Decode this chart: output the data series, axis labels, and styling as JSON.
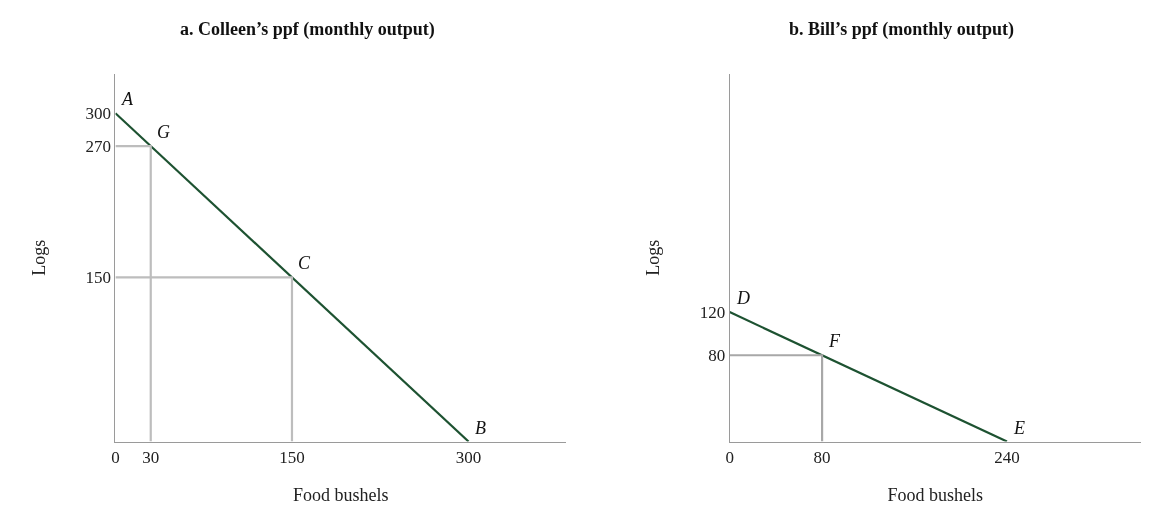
{
  "chart_data": [
    {
      "type": "line",
      "title": "a. Colleen’s ppf (monthly output)",
      "xlabel": "Food bushels",
      "ylabel": "Logs",
      "xlim": [
        0,
        383
      ],
      "ylim": [
        0,
        336
      ],
      "xticks": [
        0,
        30,
        150,
        300
      ],
      "yticks": [
        150,
        270,
        300
      ],
      "marker": "none",
      "series": [
        {
          "color": "#1d5231",
          "x": [
            0,
            300
          ],
          "values": [
            300,
            0
          ]
        },
        {
          "color": "#bdbdbd",
          "x": [
            0,
            30,
            30
          ],
          "values": [
            270,
            270,
            0
          ]
        },
        {
          "color": "#bdbdbd",
          "x": [
            0,
            150,
            150
          ],
          "values": [
            150,
            150,
            0
          ]
        }
      ],
      "annotations": [
        {
          "text": "A",
          "x": 0,
          "y": 300
        },
        {
          "text": "G",
          "x": 30,
          "y": 270
        },
        {
          "text": "C",
          "x": 150,
          "y": 150
        },
        {
          "text": "B",
          "x": 300,
          "y": 0
        }
      ]
    },
    {
      "type": "line",
      "title": "b. Bill’s ppf (monthly output)",
      "xlabel": "Food bushels",
      "ylabel": "Logs",
      "xlim": [
        0,
        356
      ],
      "ylim": [
        0,
        341
      ],
      "xticks": [
        0,
        80,
        240
      ],
      "yticks": [
        80,
        120
      ],
      "marker": "none",
      "series": [
        {
          "color": "#1d5231",
          "x": [
            0,
            240
          ],
          "values": [
            120,
            0
          ]
        },
        {
          "color": "#a8a8a8",
          "x": [
            0,
            80,
            80
          ],
          "values": [
            80,
            80,
            0
          ]
        }
      ],
      "annotations": [
        {
          "text": "D",
          "x": 0,
          "y": 120
        },
        {
          "text": "F",
          "x": 80,
          "y": 80
        },
        {
          "text": "E",
          "x": 240,
          "y": 0
        }
      ]
    }
  ]
}
